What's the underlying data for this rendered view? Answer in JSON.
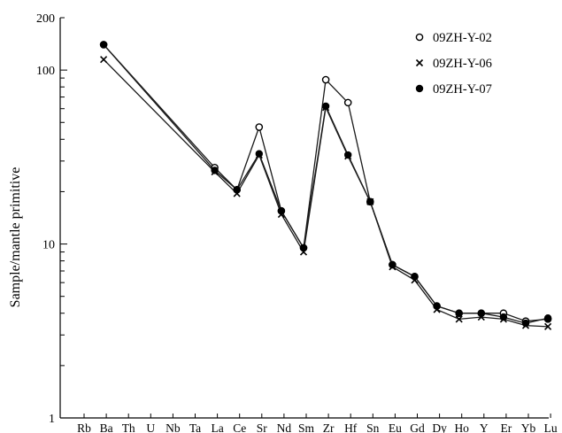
{
  "chart_data": {
    "type": "line",
    "title": "",
    "xlabel": "",
    "ylabel": "Sample/mantle primitive",
    "yscale": "log",
    "ylim": [
      1,
      200
    ],
    "yticks": [
      1,
      10,
      100,
      200
    ],
    "grid": false,
    "legend_position": "top-right",
    "categories": [
      "Rb",
      "Ba",
      "Th",
      "U",
      "Nb",
      "Ta",
      "La",
      "Ce",
      "Sr",
      "Nd",
      "Sm",
      "Zr",
      "Hf",
      "Sn",
      "Eu",
      "Gd",
      "Dy",
      "Ho",
      "Y",
      "Er",
      "Yb",
      "Lu"
    ],
    "series": [
      {
        "name": "09ZH-Y-02",
        "marker": "open-circle",
        "values": [
          null,
          140,
          null,
          null,
          null,
          null,
          27.5,
          20.5,
          47,
          15.5,
          9.5,
          88,
          65,
          17.5,
          7.6,
          6.5,
          4.4,
          4.0,
          4.0,
          4.0,
          3.6,
          3.7
        ]
      },
      {
        "name": "09ZH-Y-06",
        "marker": "cross",
        "values": [
          null,
          115,
          null,
          null,
          null,
          null,
          26,
          19.5,
          32.5,
          14.8,
          9.0,
          61,
          32,
          17.5,
          7.4,
          6.2,
          4.2,
          3.7,
          3.8,
          3.7,
          3.4,
          3.35
        ]
      },
      {
        "name": "09ZH-Y-07",
        "marker": "filled-diamond",
        "values": [
          null,
          140,
          null,
          null,
          null,
          null,
          26.5,
          20.5,
          33,
          15.5,
          9.5,
          62,
          32.5,
          17.5,
          7.6,
          6.5,
          4.4,
          4.0,
          4.0,
          3.8,
          3.5,
          3.75
        ]
      }
    ]
  }
}
